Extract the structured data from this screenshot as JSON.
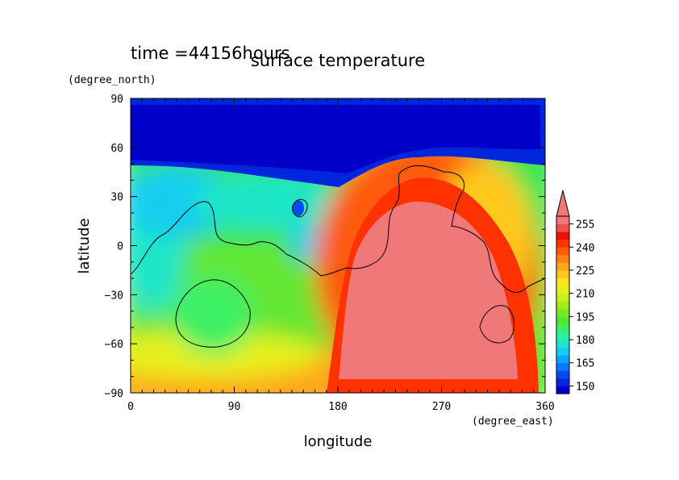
{
  "chart_data": {
    "type": "heatmap",
    "title": "surface temperature",
    "subtitle": "time =44156hours",
    "xlabel": "longitude",
    "ylabel": "latitude",
    "xunit": "(degree_east)",
    "yunit": "(degree_north)",
    "xlim": [
      0,
      360
    ],
    "ylim": [
      -90,
      90
    ],
    "xticks": [
      "0",
      "90",
      "180",
      "270",
      "360"
    ],
    "yticks": [
      "90",
      "60",
      "30",
      "0",
      "−30",
      "−60",
      "−90"
    ],
    "colorbar": {
      "labels": [
        "255",
        "240",
        "225",
        "210",
        "195",
        "180",
        "165",
        "150"
      ],
      "levels": [
        145,
        150,
        155,
        160,
        165,
        170,
        175,
        180,
        185,
        190,
        195,
        200,
        205,
        210,
        215,
        220,
        225,
        230,
        235,
        240,
        245,
        250,
        255
      ],
      "colors": [
        "#0000c8",
        "#0026dc",
        "#004cf0",
        "#0a78ff",
        "#0aa5ff",
        "#14cdf0",
        "#1ee6c8",
        "#28f0a0",
        "#3cf064",
        "#50e632",
        "#78e628",
        "#a0eb1e",
        "#c8f01e",
        "#e6f01e",
        "#ffe61e",
        "#ffc81e",
        "#ffa51e",
        "#ff8214",
        "#ff5a0a",
        "#ff3200",
        "#e61400",
        "#f05050",
        "#f07878"
      ],
      "extend": "max"
    },
    "grid": false
  }
}
